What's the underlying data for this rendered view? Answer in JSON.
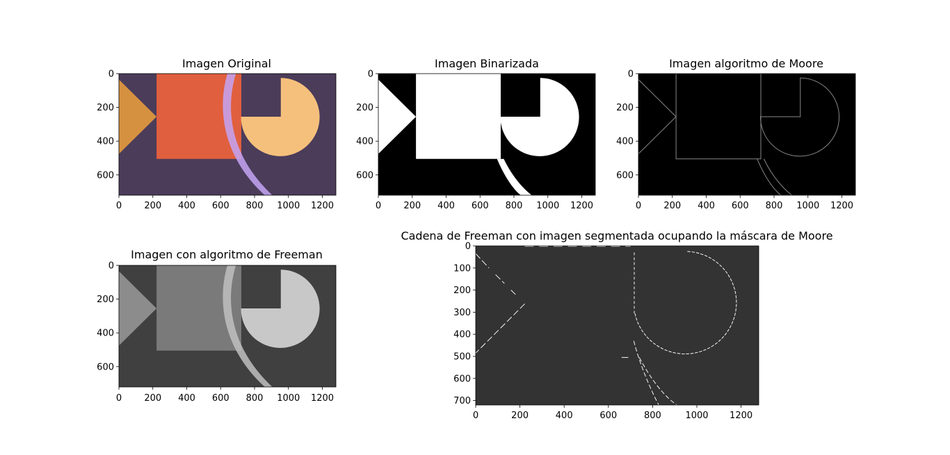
{
  "chart_data": [
    {
      "type": "image",
      "title": "Imagen Original",
      "xticks": [
        "0",
        "200",
        "400",
        "600",
        "800",
        "1000",
        "1200"
      ],
      "yticks": [
        "0",
        "200",
        "400",
        "600"
      ],
      "xlim": [
        0,
        1280
      ],
      "ylim": [
        720,
        0
      ],
      "colors": {
        "background": "#4b3c5a",
        "triangle": "#d69140",
        "square": "#e05f3e",
        "pie": "#f5c07b",
        "arc": "#c4a5f5"
      }
    },
    {
      "type": "image",
      "title": "Imagen Binarizada",
      "xticks": [
        "0",
        "200",
        "400",
        "600",
        "800",
        "1000",
        "1200"
      ],
      "yticks": [
        "0",
        "200",
        "400",
        "600"
      ],
      "xlim": [
        0,
        1280
      ],
      "ylim": [
        720,
        0
      ],
      "colors": {
        "background": "#000000",
        "foreground": "#ffffff"
      }
    },
    {
      "type": "image",
      "title": "Imagen algoritmo de Moore",
      "xticks": [
        "0",
        "200",
        "400",
        "600",
        "800",
        "1000",
        "1200"
      ],
      "yticks": [
        "0",
        "200",
        "400",
        "600"
      ],
      "xlim": [
        0,
        1280
      ],
      "ylim": [
        720,
        0
      ],
      "colors": {
        "background": "#000000",
        "contour": "#8a8a8a"
      }
    },
    {
      "type": "image",
      "title": "Imagen con algoritmo de Freeman",
      "xticks": [
        "0",
        "200",
        "400",
        "600",
        "800",
        "1000",
        "1200"
      ],
      "yticks": [
        "0",
        "200",
        "400",
        "600"
      ],
      "xlim": [
        0,
        1280
      ],
      "ylim": [
        720,
        0
      ],
      "colors": {
        "background": "#404040",
        "triangle": "#8c8c8c",
        "square": "#7a7a7a",
        "pie": "#c8c8c8",
        "arc": "#c0c0c0"
      }
    },
    {
      "type": "image",
      "title": "Cadena de Freeman con imagen segmentada ocupando la máscara de Moore",
      "xticks": [
        "0",
        "200",
        "400",
        "600",
        "800",
        "1000",
        "1200"
      ],
      "yticks": [
        "0",
        "100",
        "200",
        "300",
        "400",
        "500",
        "600",
        "700"
      ],
      "xlim": [
        0,
        1280
      ],
      "ylim": [
        720,
        0
      ],
      "colors": {
        "background": "#333333",
        "edges": "#ffffff"
      }
    }
  ]
}
